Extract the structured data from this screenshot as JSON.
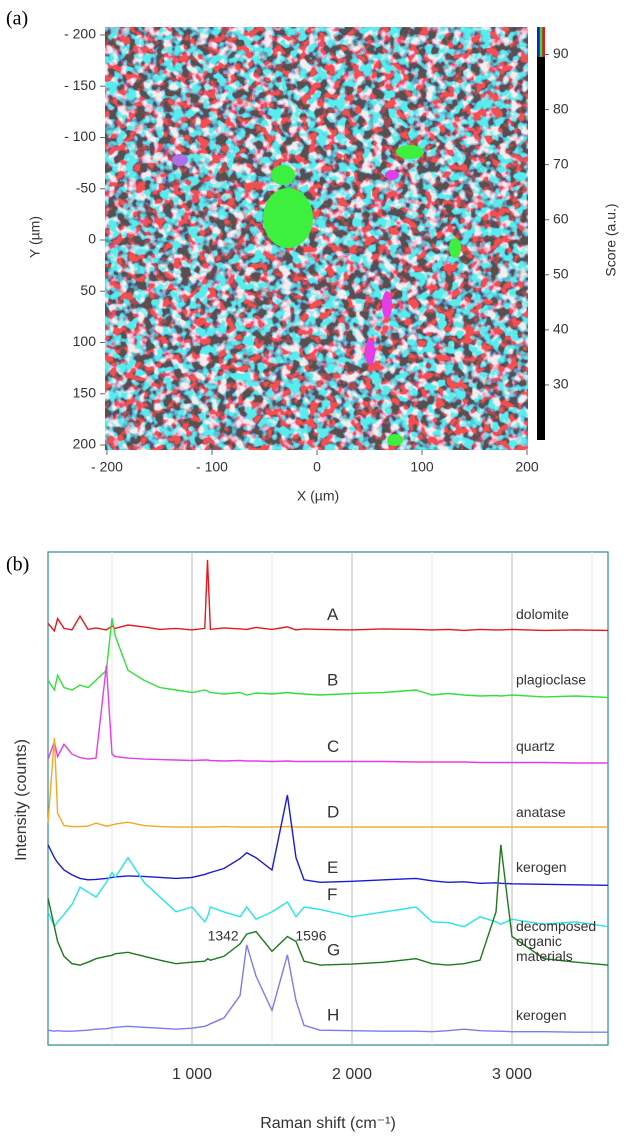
{
  "chart_data": [
    {
      "type": "heatmap",
      "panel_label": "(a)",
      "x_label": "X (µm)",
      "y_label": "Y (µm)",
      "xlim": [
        -200,
        200
      ],
      "ylim": [
        -200,
        200
      ],
      "y_inverted": true,
      "xticks": [
        {
          "value": -200,
          "label": "- 200"
        },
        {
          "value": -100,
          "label": "- 100"
        },
        0,
        100,
        200
      ],
      "yticks": [
        {
          "value": -200,
          "label": "- 200"
        },
        {
          "value": -150,
          "label": "- 150"
        },
        {
          "value": -100,
          "label": "- 100"
        },
        -50,
        0,
        50,
        100,
        150,
        200
      ],
      "colorbar": {
        "label": "Score (a.u.)",
        "lim": [
          20,
          95
        ],
        "ticks": [
          30,
          40,
          50,
          60,
          70,
          80,
          90
        ]
      }
    },
    {
      "type": "line",
      "panel_label": "(b)",
      "x_label": "Raman shift (cm⁻¹)",
      "y_label": "Intensity (counts)",
      "xlim": [
        100,
        3600
      ],
      "ylim": [
        0,
        100
      ],
      "grid": true,
      "xticks": [
        {
          "value": 1000,
          "label": "1 000"
        },
        {
          "value": 2000,
          "label": "2 000"
        },
        {
          "value": 3000,
          "label": "3 000"
        }
      ],
      "minor_xticks": [
        500,
        1500,
        2500,
        3500
      ],
      "x": [
        100,
        140,
        160,
        200,
        250,
        300,
        350,
        400,
        465,
        500,
        520,
        600,
        700,
        800,
        900,
        1000,
        1080,
        1097,
        1115,
        1200,
        1300,
        1342,
        1400,
        1500,
        1596,
        1650,
        1700,
        1800,
        2000,
        2200,
        2400,
        2500,
        2600,
        2700,
        2800,
        2900,
        2930,
        3000,
        3200,
        3400,
        3600
      ],
      "series": [
        {
          "letter": "A",
          "name": "dolomite",
          "color": "#e8161b",
          "values": [
            85.5,
            84,
            86.5,
            84.5,
            84.2,
            87,
            84.3,
            84.6,
            84.2,
            85,
            84.5,
            85.2,
            84.8,
            84.3,
            84.5,
            84.2,
            84.5,
            98.4,
            84.3,
            84.6,
            84.4,
            84.3,
            84.7,
            84.3,
            84.8,
            84.2,
            84.4,
            84.3,
            84.2,
            84.4,
            84.3,
            84.2,
            84.3,
            84.1,
            84.3,
            84.2,
            84.2,
            84.3,
            84.1,
            84.2,
            84.1
          ]
        },
        {
          "letter": "B",
          "name": "plagioclase",
          "color": "#33e03a",
          "values": [
            74,
            72,
            75,
            72.5,
            72,
            73,
            72.5,
            74,
            76,
            86.6,
            83,
            76,
            74,
            72.5,
            72,
            71.5,
            72,
            71.8,
            71.5,
            71.2,
            71.5,
            71,
            71.4,
            71.2,
            71.5,
            71.3,
            71.2,
            71,
            71.3,
            71.5,
            72,
            71,
            71.3,
            71,
            70.8,
            70.9,
            70.8,
            71,
            70.6,
            70.8,
            70.5
          ]
        },
        {
          "letter": "C",
          "name": "quartz",
          "color": "#e63ce6",
          "values": [
            58,
            61.5,
            58.5,
            61,
            59,
            58.3,
            58,
            58.2,
            77,
            59,
            58.5,
            58.2,
            58,
            57.9,
            57.8,
            57.7,
            57.8,
            57.8,
            57.7,
            57.6,
            57.7,
            57.6,
            57.6,
            57.5,
            57.6,
            57.5,
            57.5,
            57.5,
            57.5,
            57.5,
            57.4,
            57.4,
            57.4,
            57.4,
            57.3,
            57.3,
            57.3,
            57.3,
            57.3,
            57.2,
            57.2
          ]
        },
        {
          "letter": "D",
          "name": "anatase",
          "color": "#f5a623",
          "values": [
            45,
            62.3,
            47,
            44.5,
            44.3,
            44.3,
            44.4,
            45,
            44.4,
            44.6,
            44.8,
            45.2,
            44.5,
            44.3,
            44.2,
            44.2,
            44.2,
            44.2,
            44.2,
            44.3,
            44.2,
            44.2,
            44.2,
            44.2,
            44.3,
            44.2,
            44.2,
            44.2,
            44.2,
            44.2,
            44.2,
            44.2,
            44.2,
            44.2,
            44.2,
            44.2,
            44.2,
            44.2,
            44.2,
            44.2,
            44.2
          ]
        },
        {
          "letter": "E",
          "name": "kerogen",
          "color": "#1a1ad6",
          "values": [
            40.6,
            38,
            37,
            35.5,
            34.5,
            33.8,
            33.5,
            33.6,
            33.8,
            34,
            34.1,
            34.3,
            34.2,
            34,
            33.8,
            34,
            34.6,
            34.8,
            35,
            35.8,
            37.8,
            39,
            38,
            35.5,
            50.7,
            38,
            33.5,
            33,
            33.2,
            33.5,
            33.8,
            33.3,
            33,
            33.1,
            32.8,
            32.9,
            32.8,
            32.7,
            32.6,
            32.5,
            32.4
          ]
        },
        {
          "letter": "F",
          "color": "#22e6ea",
          "values": [
            27,
            24,
            25,
            26.5,
            28.5,
            32,
            31,
            30,
            33,
            35,
            34,
            38,
            33,
            30,
            27,
            28,
            25,
            26,
            28,
            27,
            26,
            28,
            25.5,
            27,
            29,
            26,
            28,
            27.5,
            26,
            27,
            28,
            25,
            24.8,
            24,
            26,
            25,
            24.5,
            25.5,
            24.5,
            25,
            24
          ]
        },
        {
          "letter": "G",
          "name": [
            "decomposed",
            "organic",
            "materials"
          ],
          "color": "#1b7a1b",
          "values": [
            29.8,
            24,
            21,
            18,
            16.5,
            16.2,
            16.8,
            17.5,
            18,
            18.2,
            18.5,
            18.8,
            18,
            17.2,
            16.5,
            16.8,
            17,
            17.5,
            17.2,
            18,
            20.5,
            22.5,
            23,
            19,
            22,
            21,
            17,
            16.2,
            16.4,
            16.8,
            17.5,
            16.5,
            16.2,
            16.5,
            17.2,
            27,
            40.6,
            22,
            17.5,
            16.8,
            16.2
          ]
        },
        {
          "letter": "H",
          "name": "kerogen",
          "color": "#7b7bef",
          "values": [
            3,
            2.8,
            2.9,
            2.8,
            2.8,
            2.9,
            3,
            3.2,
            3.3,
            3.5,
            3.6,
            3.8,
            3.6,
            3.4,
            3.2,
            3.4,
            3.8,
            4,
            4.3,
            5.5,
            10,
            20.3,
            14,
            7,
            18.3,
            9,
            4,
            3,
            2.9,
            2.8,
            2.8,
            2.7,
            2.9,
            3.2,
            2.9,
            2.8,
            2.8,
            2.7,
            2.7,
            2.6,
            2.6
          ]
        }
      ],
      "annotations": [
        {
          "label": "1342",
          "x": 1342
        },
        {
          "label": "1596",
          "x": 1596
        }
      ]
    }
  ]
}
